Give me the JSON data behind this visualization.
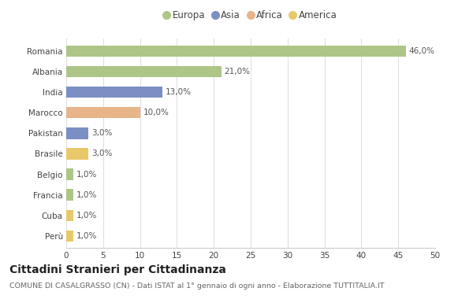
{
  "countries": [
    "Romania",
    "Albania",
    "India",
    "Marocco",
    "Pakistan",
    "Brasile",
    "Belgio",
    "Francia",
    "Cuba",
    "Perù"
  ],
  "values": [
    46.0,
    21.0,
    13.0,
    10.0,
    3.0,
    3.0,
    1.0,
    1.0,
    1.0,
    1.0
  ],
  "labels": [
    "46,0%",
    "21,0%",
    "13,0%",
    "10,0%",
    "3,0%",
    "3,0%",
    "1,0%",
    "1,0%",
    "1,0%",
    "1,0%"
  ],
  "colors": [
    "#adc688",
    "#adc688",
    "#7b8fc4",
    "#e8b48a",
    "#7b8fc4",
    "#e8c96a",
    "#adc688",
    "#adc688",
    "#e8c96a",
    "#e8c96a"
  ],
  "legend_labels": [
    "Europa",
    "Asia",
    "Africa",
    "America"
  ],
  "legend_colors": [
    "#adc688",
    "#7b8fc4",
    "#e8b48a",
    "#e8c96a"
  ],
  "xlim": [
    0,
    50
  ],
  "xticks": [
    0,
    5,
    10,
    15,
    20,
    25,
    30,
    35,
    40,
    45,
    50
  ],
  "title": "Cittadini Stranieri per Cittadinanza",
  "subtitle": "COMUNE DI CASALGRASSO (CN) - Dati ISTAT al 1° gennaio di ogni anno - Elaborazione TUTTITALIA.IT",
  "bg_color": "#ffffff",
  "plot_bg_color": "#ffffff",
  "grid_color": "#e0e0e0",
  "bar_height": 0.55,
  "label_fontsize": 7.5,
  "tick_label_fontsize": 7.5,
  "title_fontsize": 10,
  "subtitle_fontsize": 6.8
}
